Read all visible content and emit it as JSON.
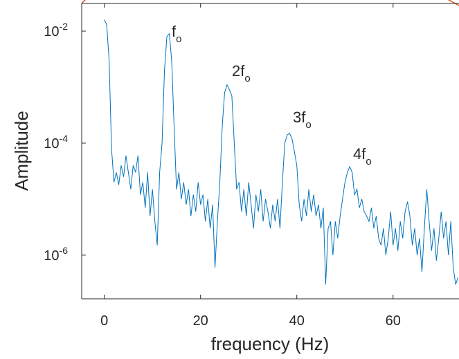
{
  "chart_data": {
    "type": "line",
    "xlabel": "frequency (Hz)",
    "ylabel": "Amplitude",
    "yscale": "log",
    "xlim": [
      -4.7,
      73.7
    ],
    "ylim": [
      0.0312,
      1.66e-07
    ],
    "xticks": [
      0,
      20,
      40,
      60
    ],
    "yticks": [
      {
        "value": 0.01,
        "label": "10",
        "exponent": "-2"
      },
      {
        "value": 0.0001,
        "label": "10",
        "exponent": "-4"
      },
      {
        "value": 1e-06,
        "label": "10",
        "exponent": "-6"
      }
    ],
    "annotations": [
      {
        "text": "f",
        "subscript": "o"
      },
      {
        "text": "2f",
        "subscript": "o"
      },
      {
        "text": "3f",
        "subscript": "o"
      },
      {
        "text": "4f",
        "subscript": "o"
      }
    ],
    "x": [
      0,
      0.5,
      1,
      1.5,
      2,
      2.5,
      3,
      3.5,
      4,
      4.5,
      5,
      5.5,
      6,
      6.5,
      7,
      7.5,
      8,
      8.5,
      9,
      9.5,
      10,
      10.5,
      11,
      11.5,
      12,
      12.5,
      13,
      13.5,
      14,
      14.5,
      15,
      15.5,
      16,
      16.5,
      17,
      17.5,
      18,
      18.5,
      19,
      19.5,
      20,
      20.5,
      21,
      21.5,
      22,
      22.5,
      23,
      23.5,
      24,
      24.5,
      25,
      25.5,
      26,
      26.5,
      27,
      27.5,
      28,
      28.5,
      29,
      29.5,
      30,
      30.5,
      31,
      31.5,
      32,
      32.5,
      33,
      33.5,
      34,
      34.5,
      35,
      35.5,
      36,
      36.5,
      37,
      37.5,
      38,
      38.5,
      39,
      39.5,
      40,
      40.5,
      41,
      41.5,
      42,
      42.5,
      43,
      43.5,
      44,
      44.5,
      45,
      45.5,
      46,
      46.5,
      47,
      47.5,
      48,
      48.5,
      49,
      49.5,
      50,
      50.5,
      51,
      51.5,
      52,
      52.5,
      53,
      53.5,
      54,
      54.5,
      55,
      55.5,
      56,
      56.5,
      57,
      57.5,
      58,
      58.5,
      59,
      59.5,
      60,
      60.5,
      61,
      61.5,
      62,
      62.5,
      63,
      63.5,
      64,
      64.5,
      65,
      65.5,
      66,
      66.5,
      67,
      67.5,
      68,
      68.5,
      69,
      69.5,
      70,
      70.5,
      71,
      71.5,
      72,
      72.5,
      73,
      73.5
    ],
    "series": [
      {
        "color": "#0072bd",
        "values": [
          0.016,
          0.013,
          0.003,
          8e-05,
          2e-05,
          3e-05,
          1.8e-05,
          4e-05,
          2.5e-05,
          6e-05,
          3e-05,
          1.5e-05,
          4e-05,
          3e-05,
          6e-05,
          1.2e-05,
          2e-05,
          7e-06,
          3e-05,
          5e-06,
          1.5e-05,
          4e-06,
          1.5e-06,
          3e-05,
          0.0001,
          0.002,
          0.008,
          0.009,
          0.003,
          0.0002,
          1.5e-05,
          3e-05,
          1e-05,
          2e-05,
          8e-06,
          1.5e-05,
          5e-06,
          1.2e-05,
          6e-06,
          2e-05,
          8e-06,
          1.2e-05,
          4e-06,
          1e-05,
          3e-06,
          8e-06,
          6e-07,
          4e-06,
          2e-05,
          0.0002,
          0.0008,
          0.0011,
          0.0009,
          0.0007,
          0.0001,
          1.5e-05,
          2e-05,
          6e-06,
          1.5e-05,
          5e-06,
          2e-05,
          8e-06,
          3e-06,
          1.2e-05,
          6e-06,
          1.5e-05,
          4e-06,
          1e-05,
          6e-06,
          3e-06,
          8e-06,
          4e-06,
          1e-05,
          3e-06,
          2e-05,
          0.0001,
          0.00014,
          0.00015,
          0.00012,
          7e-05,
          4e-05,
          8e-06,
          4e-06,
          1e-05,
          5e-06,
          1.5e-05,
          6e-06,
          1.2e-05,
          5e-06,
          8e-06,
          3e-06,
          7e-06,
          3e-07,
          3e-06,
          4e-06,
          1e-06,
          4e-06,
          2e-06,
          5e-06,
          1e-05,
          2e-05,
          3e-05,
          3.8e-05,
          3e-05,
          1.2e-05,
          1.5e-05,
          7e-06,
          1e-05,
          6e-06,
          5e-06,
          4e-06,
          7e-06,
          3e-06,
          5e-06,
          2e-06,
          1.5e-06,
          3e-06,
          1e-06,
          2e-06,
          6e-06,
          1.5e-06,
          3e-06,
          1.2e-06,
          4e-06,
          2e-06,
          6e-06,
          9e-06,
          5e-06,
          1.5e-06,
          3e-06,
          1e-06,
          2e-06,
          5e-07,
          3e-06,
          1.5e-05,
          4e-06,
          1.2e-06,
          3e-06,
          8e-07,
          2e-06,
          6e-06,
          2e-06,
          4e-06,
          1e-06,
          4e-06,
          6e-07,
          3e-07,
          4e-07
        ]
      }
    ]
  }
}
